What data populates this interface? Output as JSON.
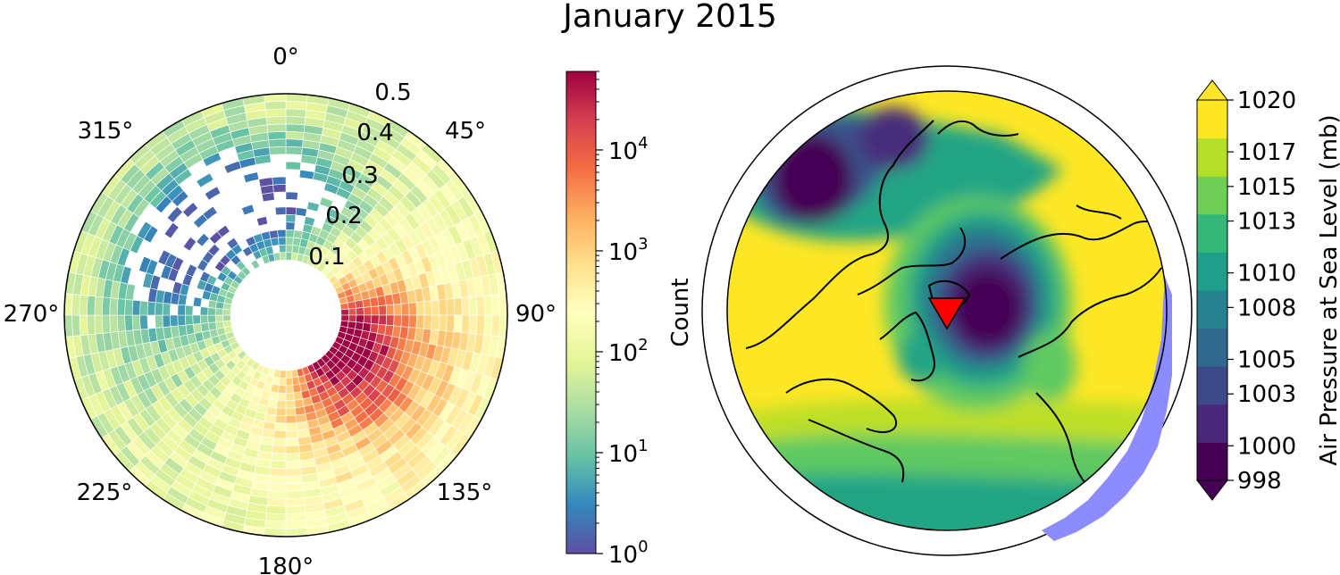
{
  "title": "January 2015",
  "chart_data": [
    {
      "type": "heatmap",
      "projection": "polar",
      "angle_labels": [
        "0°",
        "45°",
        "90°",
        "135°",
        "180°",
        "225°",
        "270°",
        "315°"
      ],
      "radial_labels": [
        "0.1",
        "0.2",
        "0.3",
        "0.4",
        "0.5"
      ],
      "radial_range": [
        0.0,
        0.56
      ],
      "inner_hole_radius": 0.14,
      "colorbar": {
        "label": "Count",
        "scale": "log",
        "range": [
          1,
          60000
        ],
        "colormap": "Spectral_r",
        "ticks": [
          {
            "mant": "10",
            "exp": "0"
          },
          {
            "mant": "10",
            "exp": "1"
          },
          {
            "mant": "10",
            "exp": "2"
          },
          {
            "mant": "10",
            "exp": "3"
          },
          {
            "mant": "10",
            "exp": "4"
          }
        ]
      },
      "hot_sector_deg": 120,
      "sparse_sector_deg": 325
    },
    {
      "type": "map",
      "projection": "north-polar-stereographic",
      "field": "air pressure at sea level",
      "marker": {
        "shape": "triangle-down",
        "color": "#ff0000"
      },
      "colorbar": {
        "label": "Air Pressure at Sea Level (mb)",
        "range": [
          998,
          1020
        ],
        "extend": "both",
        "colormap": "viridis",
        "tick_labels": [
          "998",
          "1000",
          "1003",
          "1005",
          "1008",
          "1010",
          "1013",
          "1015",
          "1017",
          "1020"
        ]
      }
    }
  ],
  "colors": {
    "map_high": "#fde725",
    "map_low": "#440154",
    "marker": "#ff0000",
    "missing_data": "#8c8cff"
  }
}
